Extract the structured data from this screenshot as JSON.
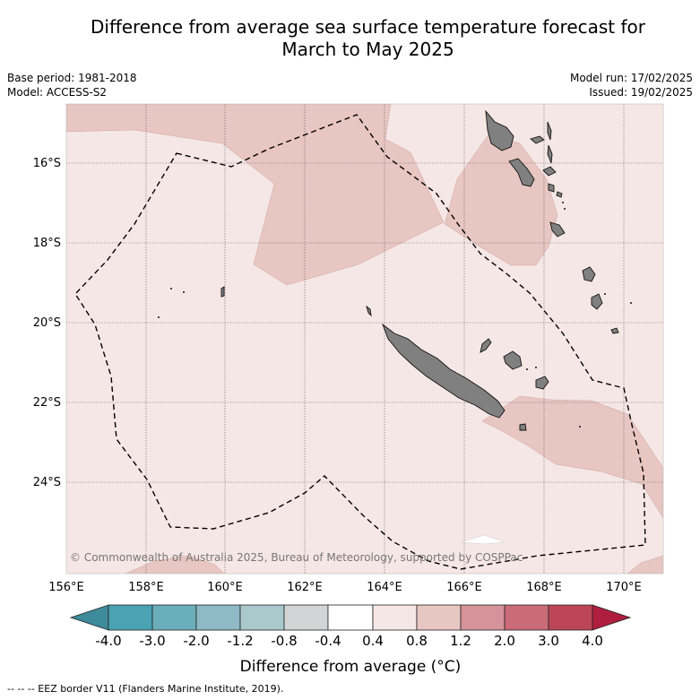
{
  "title_line1": "Difference from average sea surface temperature forecast for",
  "title_line2": "March to May 2025",
  "meta_left": {
    "base_period": "Base period: 1981-2018",
    "model": "Model: ACCESS-S2"
  },
  "meta_right": {
    "model_run": "Model run: 17/02/2025",
    "issued": "Issued: 19/02/2025"
  },
  "map": {
    "lon_labels": [
      "156°E",
      "158°E",
      "160°E",
      "162°E",
      "164°E",
      "166°E",
      "168°E",
      "170°E"
    ],
    "lat_labels": [
      "16°S",
      "18°S",
      "20°S",
      "22°S",
      "24°S"
    ],
    "copyright": "© Commonwealth of Australia 2025, Bureau of Meteorology, supported by COSPPac",
    "colors": {
      "ocean_0_4_0_8": "#f5e7e5",
      "ocean_0_8_1_2": "#e8c6c1",
      "land": "#808080"
    }
  },
  "colorbar": {
    "ticks": [
      "-4.0",
      "-3.0",
      "-2.0",
      "-1.2",
      "-0.8",
      "-0.4",
      "0.4",
      "0.8",
      "1.2",
      "2.0",
      "3.0",
      "4.0"
    ],
    "colors": [
      "#3d8b9b",
      "#4aa3b3",
      "#6baebb",
      "#8fb9c4",
      "#a9c9cc",
      "#d2d5d5",
      "#ffffff",
      "#f5e7e5",
      "#e8c6c1",
      "#d5939a",
      "#ca6b77",
      "#bd4656",
      "#b01e3f"
    ],
    "label": "Difference from average (°C)"
  },
  "footer": "--  --  -- EEZ border V11 (Flanders Marine Institute, 2019)."
}
